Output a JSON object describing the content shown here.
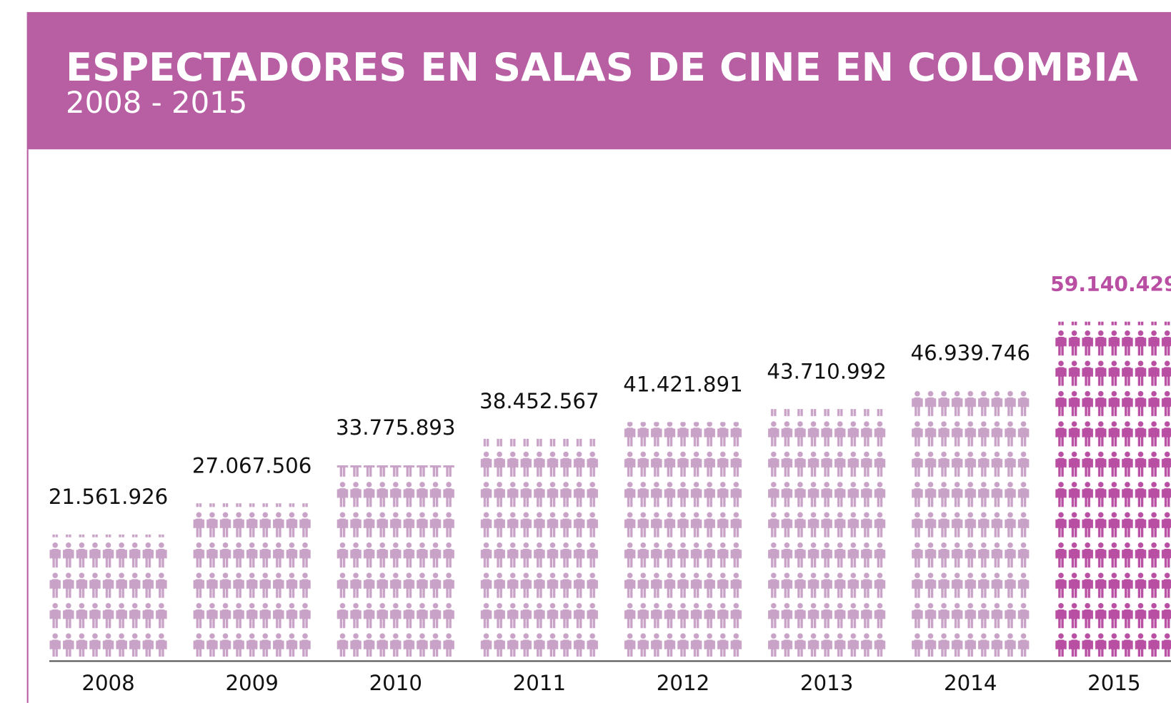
{
  "chart_data": {
    "type": "pictograph",
    "title": "ESPECTADORES EN SALAS DE CINE EN COLOMBIA",
    "subtitle": "2008 - 2015",
    "categories": [
      "2008",
      "2009",
      "2010",
      "2011",
      "2012",
      "2013",
      "2014",
      "2015"
    ],
    "values": [
      21561926,
      27067506,
      33775893,
      38452567,
      41421891,
      43710992,
      46939746,
      59140429
    ],
    "value_labels": [
      "21.561.926",
      "27.067.506",
      "33.775.893",
      "38.452.567",
      "41.421.891",
      "43.710.992",
      "46.939.746",
      "59.140.429"
    ],
    "colors": [
      "#c9a2c7",
      "#c9a2c7",
      "#c9a2c7",
      "#c9a2c7",
      "#c9a2c7",
      "#c9a2c7",
      "#c9a2c7",
      "#b94fa3"
    ],
    "header_color": "#b85ea3"
  }
}
